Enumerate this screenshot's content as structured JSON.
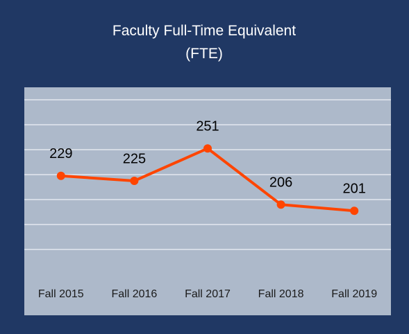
{
  "chart_data": {
    "type": "line",
    "title": "Faculty Full-Time Equivalent (FTE)",
    "categories": [
      "Fall 2015",
      "Fall 2016",
      "Fall 2017",
      "Fall 2018",
      "Fall 2019"
    ],
    "values": [
      229,
      225,
      251,
      206,
      201
    ],
    "color": "#ff4500",
    "ylim": [
      150,
      300
    ],
    "yticks": [
      170,
      190,
      210,
      230,
      250,
      270,
      290
    ],
    "grid": true
  }
}
